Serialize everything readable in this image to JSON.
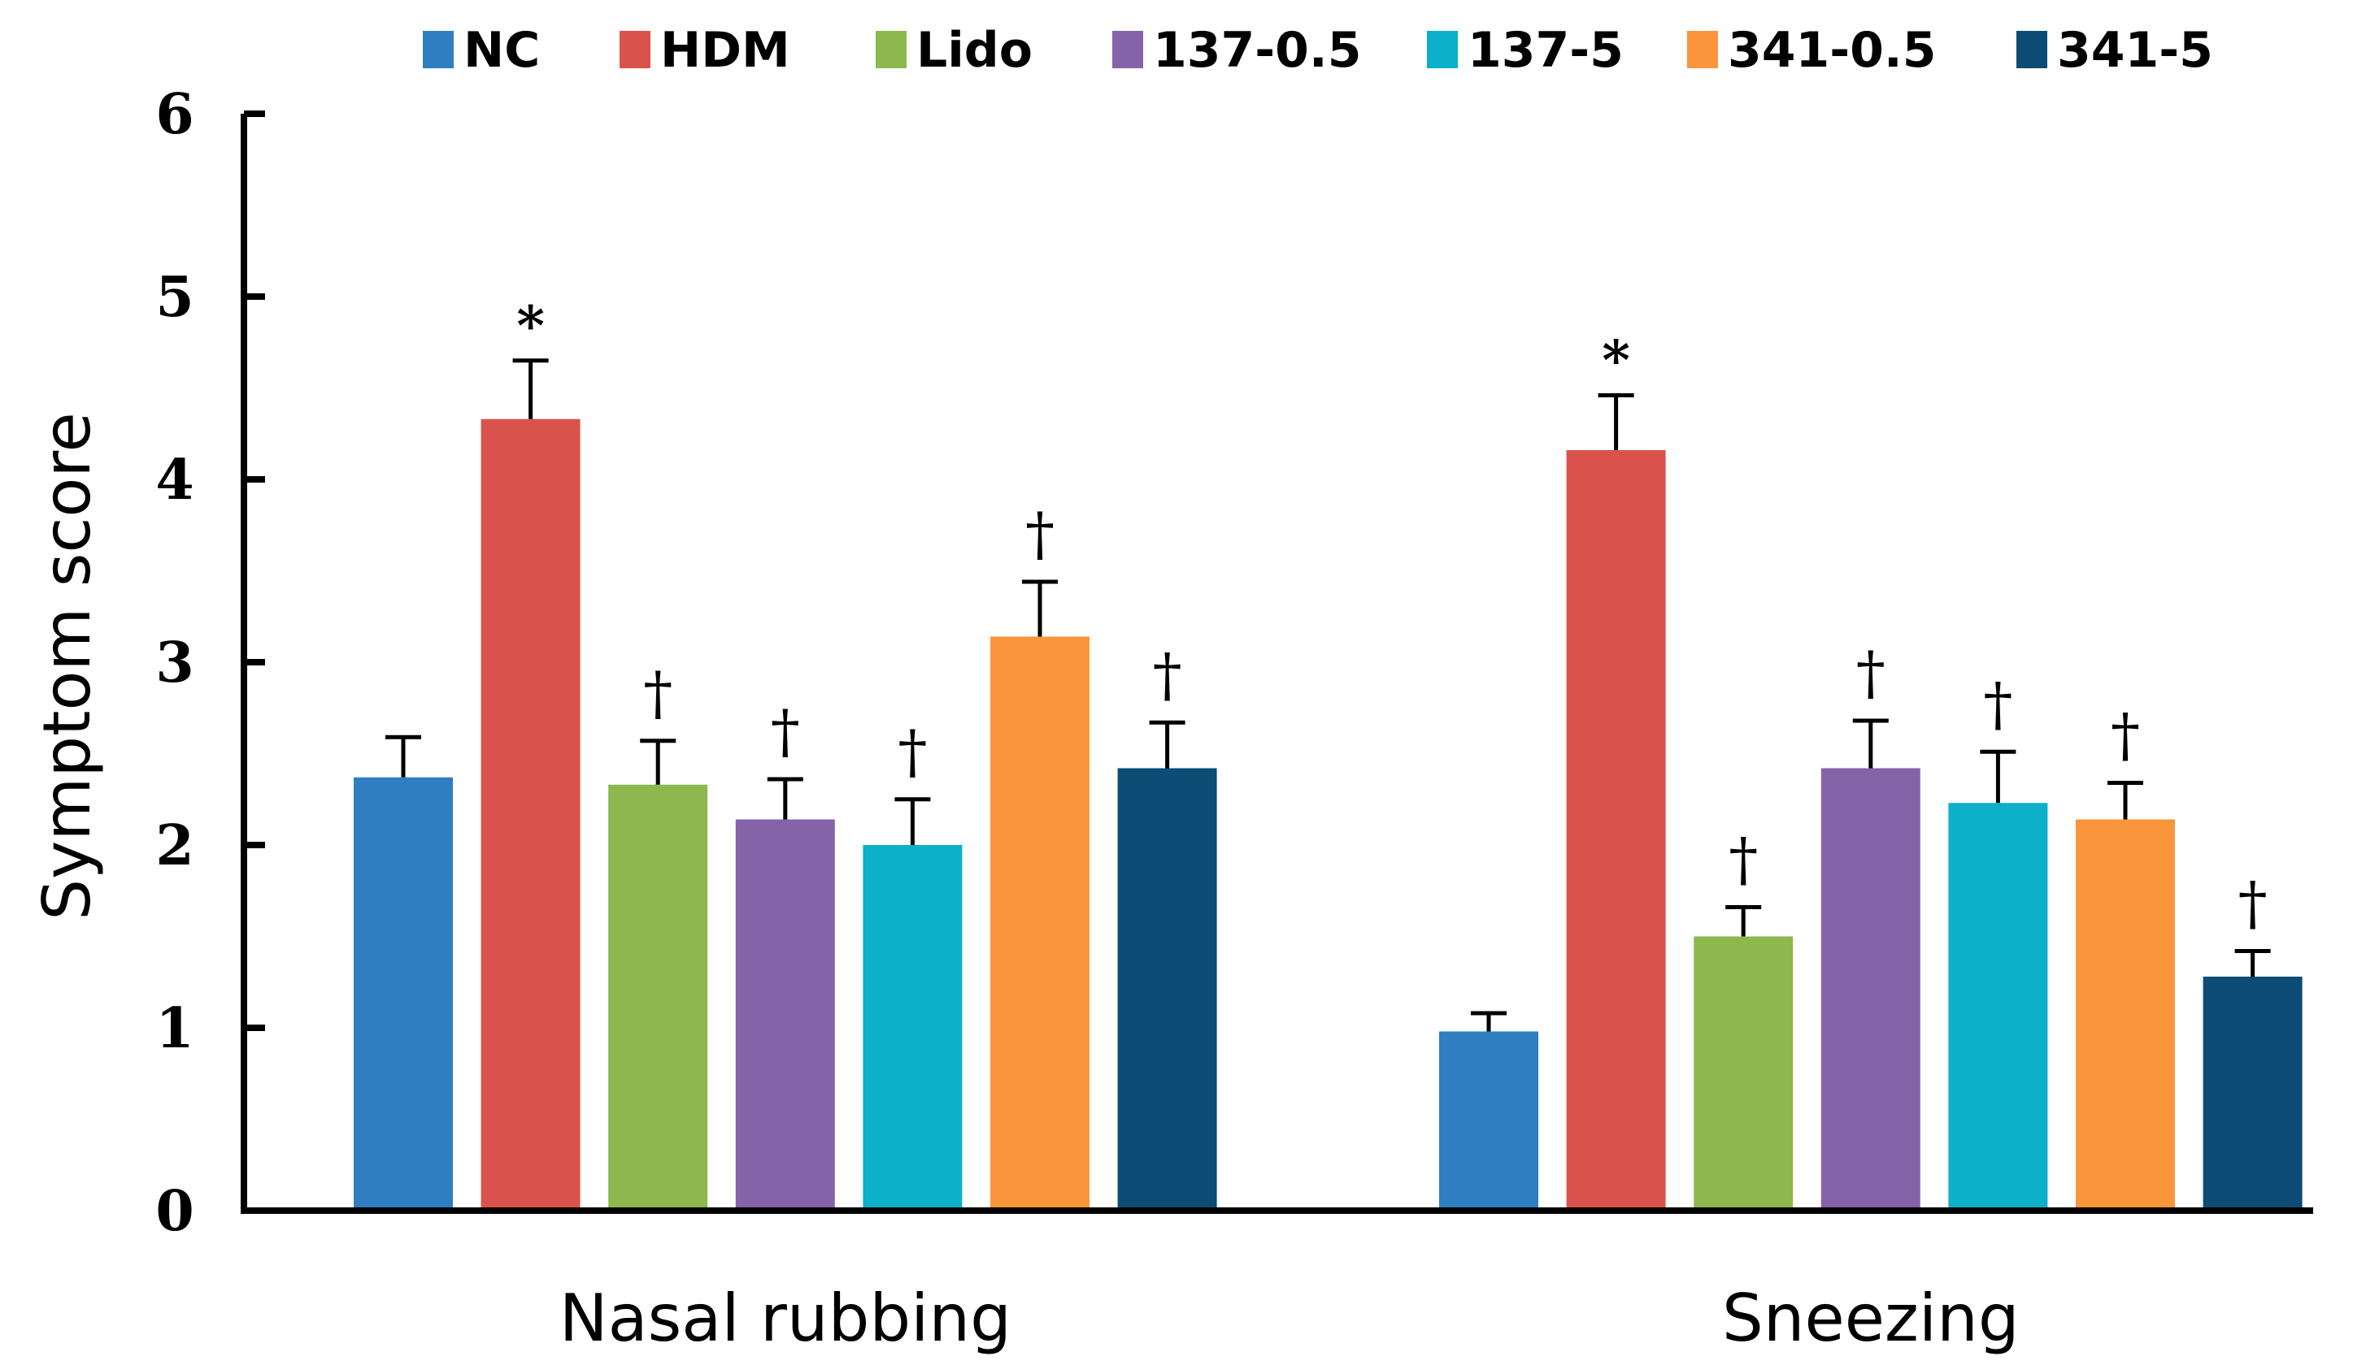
{
  "chart_data": {
    "type": "bar",
    "title": "",
    "xlabel": "",
    "ylabel": "Symptom score",
    "ylim": [
      0,
      6
    ],
    "yticks": [
      "0",
      "1",
      "2",
      "3",
      "4",
      "5",
      "6"
    ],
    "grid": false,
    "legend_position": "top",
    "categories": [
      "Nasal rubbing",
      "Sneezing"
    ],
    "series": [
      {
        "name": "NC",
        "color": "#2E7EC1",
        "values": [
          2.37,
          0.98
        ],
        "errors": [
          0.22,
          0.1
        ],
        "marks": [
          "",
          ""
        ]
      },
      {
        "name": "HDM",
        "color": "#D9534C",
        "values": [
          4.33,
          4.16
        ],
        "errors": [
          0.32,
          0.3
        ],
        "marks": [
          "*",
          "*"
        ]
      },
      {
        "name": "Lido",
        "color": "#8CB84E",
        "values": [
          2.33,
          1.5
        ],
        "errors": [
          0.24,
          0.16
        ],
        "marks": [
          "†",
          "†"
        ]
      },
      {
        "name": "137-0.5",
        "color": "#8563A8",
        "values": [
          2.14,
          2.42
        ],
        "errors": [
          0.22,
          0.26
        ],
        "marks": [
          "†",
          "†"
        ]
      },
      {
        "name": "137-5",
        "color": "#0DB0C9",
        "values": [
          2.0,
          2.23
        ],
        "errors": [
          0.25,
          0.28
        ],
        "marks": [
          "†",
          "†"
        ]
      },
      {
        "name": "341-0.5",
        "color": "#F9953A",
        "values": [
          3.14,
          2.14
        ],
        "errors": [
          0.3,
          0.2
        ],
        "marks": [
          "†",
          "†"
        ]
      },
      {
        "name": "341-5",
        "color": "#0D4C75",
        "values": [
          2.42,
          1.28
        ],
        "errors": [
          0.25,
          0.14
        ],
        "marks": [
          "†",
          "†"
        ]
      }
    ]
  }
}
